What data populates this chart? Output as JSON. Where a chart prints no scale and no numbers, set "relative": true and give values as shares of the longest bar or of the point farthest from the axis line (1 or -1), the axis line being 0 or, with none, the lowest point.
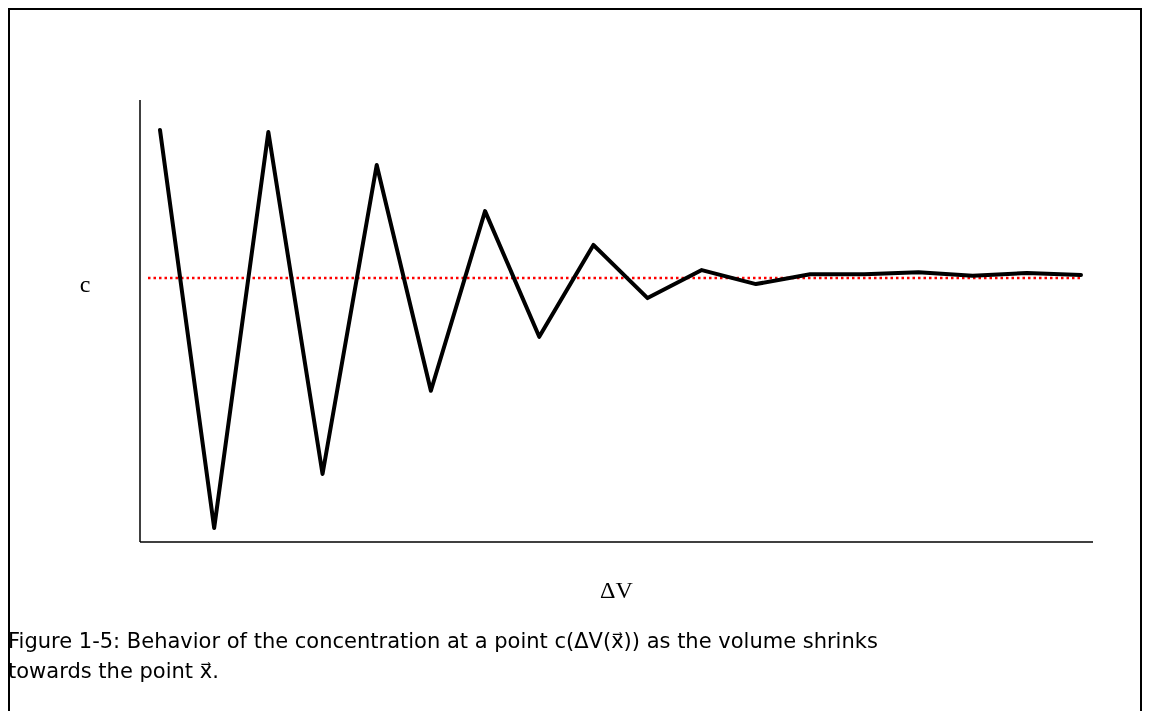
{
  "chart_data": {
    "type": "line",
    "xlabel": "ΔV",
    "relative": true,
    "line_style": "solid",
    "categories": [
      null,
      null,
      null,
      null,
      null,
      null,
      null,
      null,
      null,
      null,
      null,
      null,
      null,
      null,
      null,
      null,
      null,
      null
    ],
    "series": [
      {
        "color": "#000000",
        "values": [
          1.0,
          0.034,
          0.995,
          0.165,
          0.915,
          0.367,
          0.803,
          0.498,
          0.721,
          0.592,
          0.66,
          0.626,
          0.65,
          0.65,
          0.655,
          0.646,
          0.653,
          0.648
        ]
      }
    ],
    "ref_lines": [
      {
        "axis": "y",
        "value": 0.641,
        "label": "c",
        "color": "#ff0000",
        "line_style": "dotted"
      }
    ],
    "annotations": [
      "Figure 1-5: Behavior of the concentration at a point c(ΔV(x⃗)) as the volume shrinks towards the point x⃗."
    ]
  }
}
